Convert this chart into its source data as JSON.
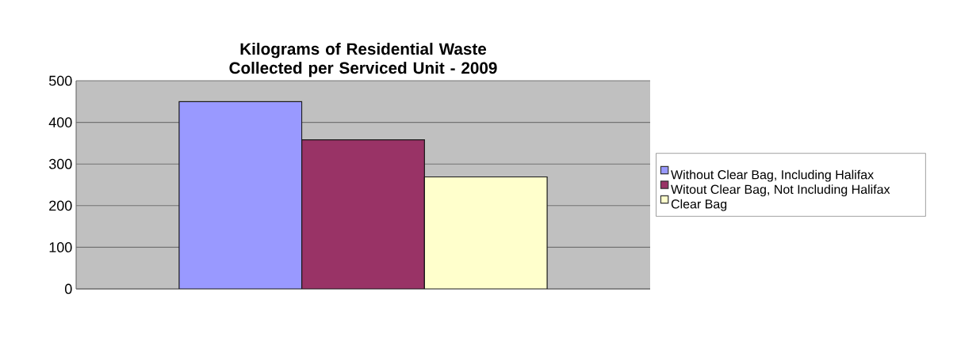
{
  "chart_data": {
    "type": "bar",
    "title": "Kilograms of Residential Waste Collected per Serviced Unit - 2009",
    "categories": [
      null
    ],
    "series": [
      {
        "name": "Without Clear Bag, Including Halifax",
        "color": "#9999ff",
        "values": [
          450
        ]
      },
      {
        "name": "Witout Clear Bag, Not Including Halifax",
        "color": "#993366",
        "values": [
          358
        ]
      },
      {
        "name": "Clear Bag",
        "color": "#ffffcc",
        "values": [
          269
        ]
      }
    ],
    "ylim": [
      0,
      500
    ],
    "yticks": [
      0,
      100,
      200,
      300,
      400,
      500
    ],
    "grid": "y",
    "legend": "right"
  }
}
